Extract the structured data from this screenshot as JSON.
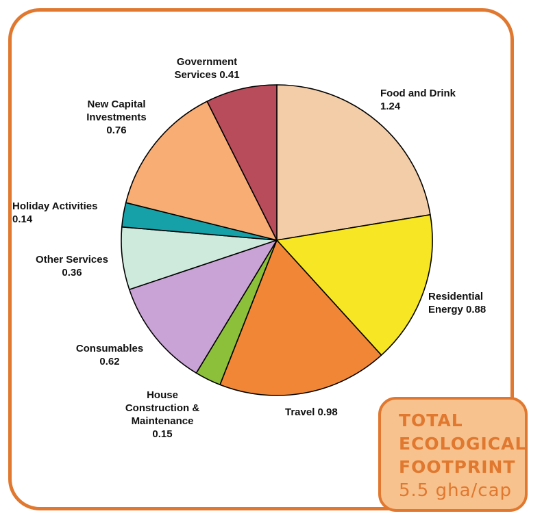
{
  "chart_data": {
    "type": "pie",
    "slices": [
      {
        "label": "Food and Drink",
        "label_text": "Food and Drink\n1.24",
        "value": 1.24,
        "color": "#f2cda8"
      },
      {
        "label": "Residential Energy",
        "label_text": "Residential\nEnergy  0.88",
        "value": 0.88,
        "color": "#f7e623"
      },
      {
        "label": "Travel",
        "label_text": "Travel  0.98",
        "value": 0.98,
        "color": "#f08636"
      },
      {
        "label": "House Construction & Maintenance",
        "label_text": "House\nConstruction &\nMaintenance\n0.15",
        "value": 0.15,
        "color": "#8cbf3a"
      },
      {
        "label": "Consumables",
        "label_text": "Consumables\n0.62",
        "value": 0.62,
        "color": "#c9a3d6"
      },
      {
        "label": "Other Services",
        "label_text": "Other Services\n0.36",
        "value": 0.36,
        "color": "#cdeadc"
      },
      {
        "label": "Holiday Activities",
        "label_text": "Holiday Activities\n0.14",
        "value": 0.14,
        "color": "#16a0a8"
      },
      {
        "label": "New Capital Investments",
        "label_text": "New Capital\nInvestments\n0.76",
        "value": 0.76,
        "color": "#f7ad74"
      },
      {
        "label": "Government Services",
        "label_text": "Government\nServices  0.41",
        "value": 0.41,
        "color": "#b84c5a"
      }
    ]
  },
  "total_box": {
    "line1": "TOTAL",
    "line2": "ECOLOGICAL",
    "line3": "FOOTPRINT",
    "value": "5.5 gha/cap"
  }
}
